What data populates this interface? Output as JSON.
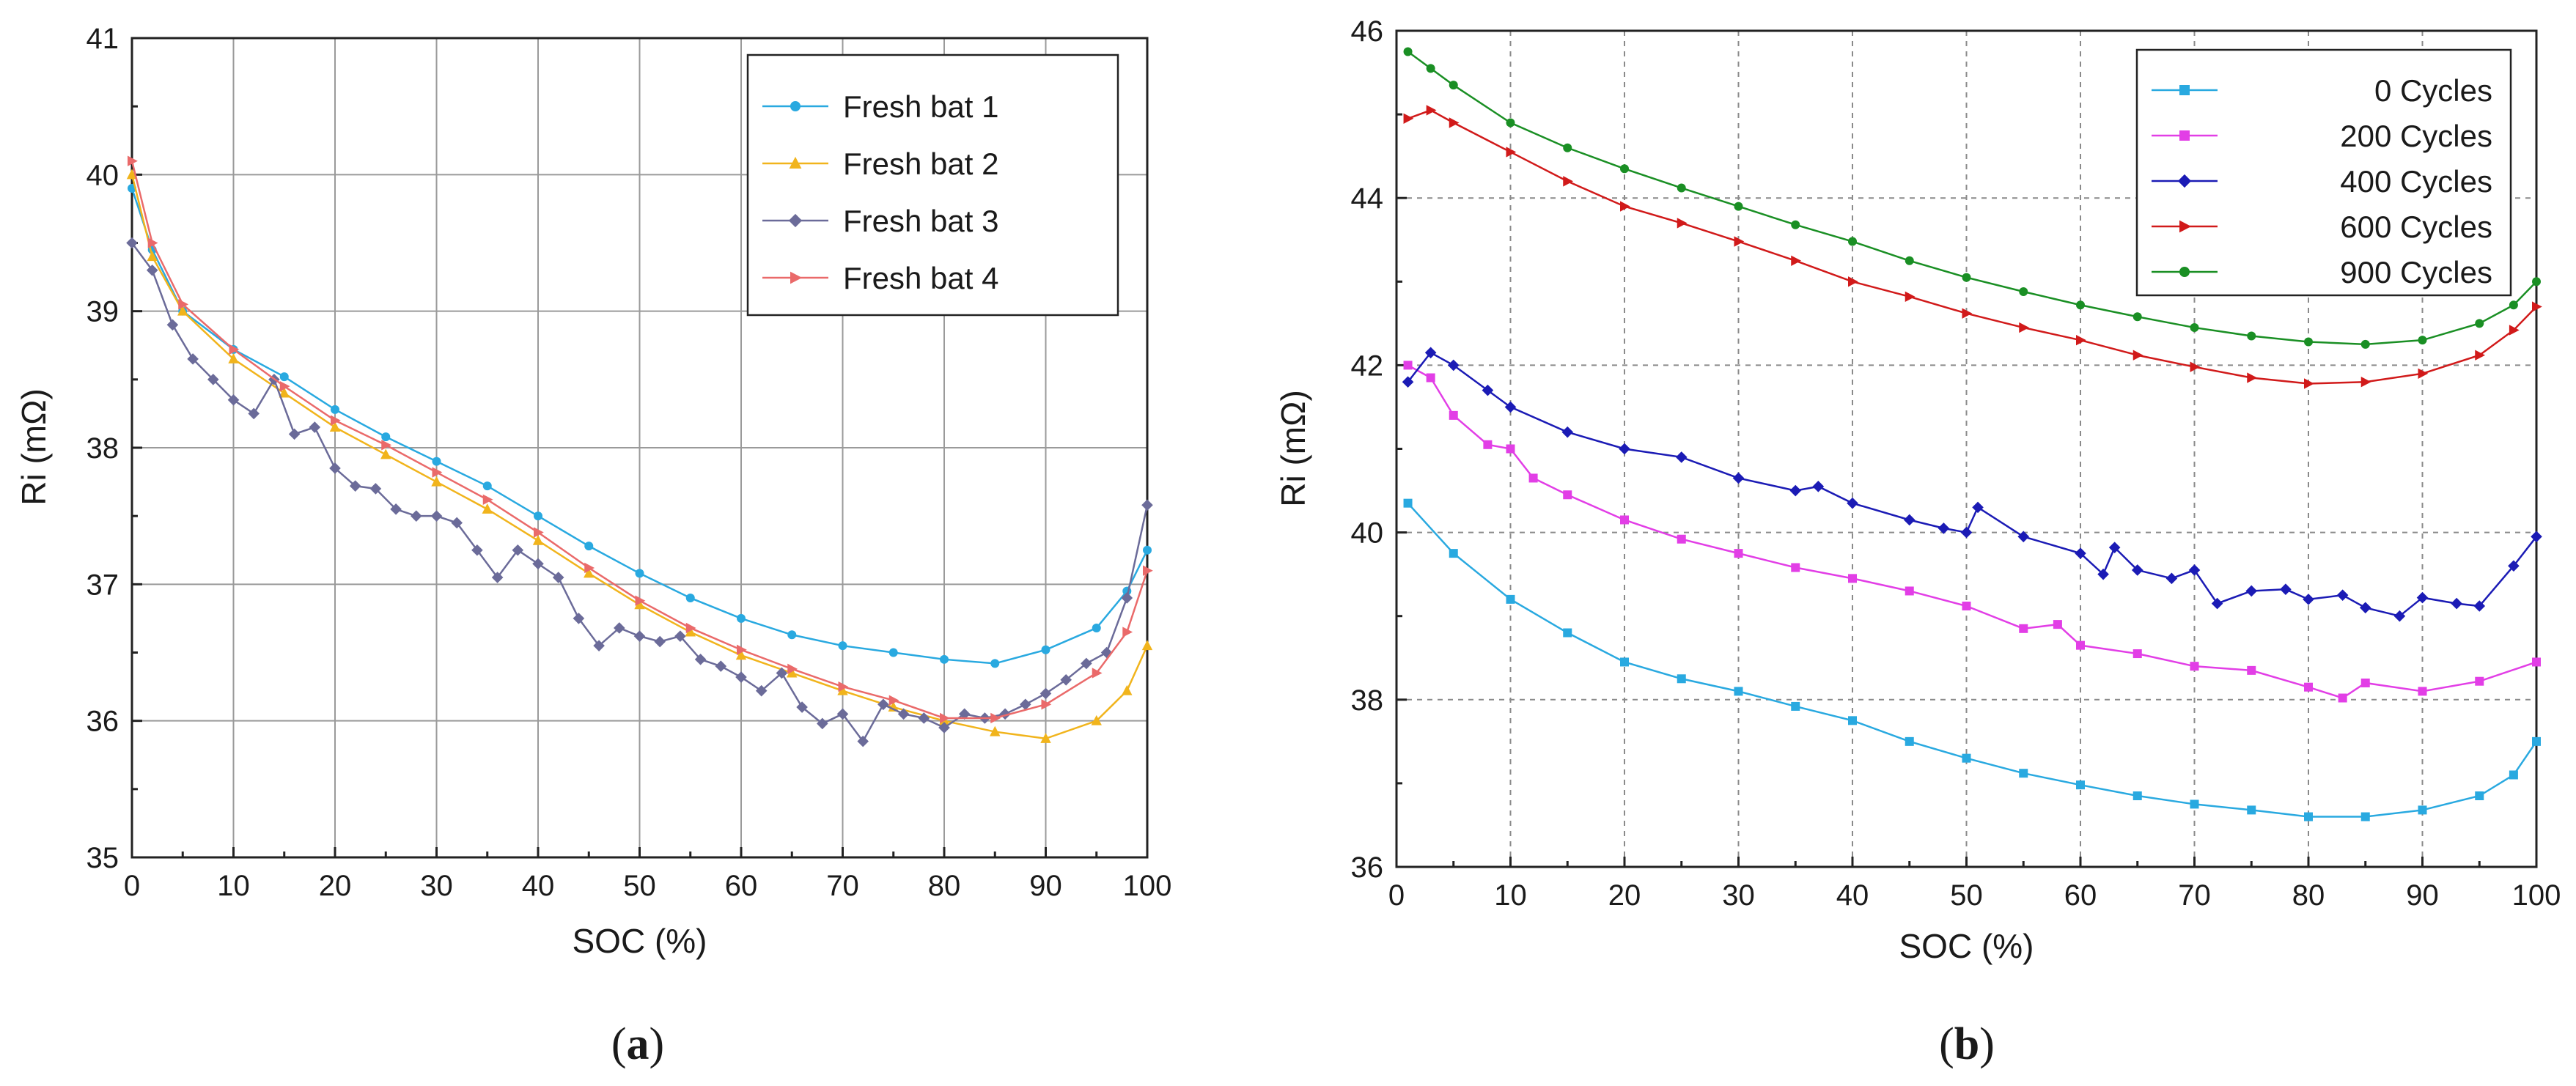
{
  "chart_data": [
    {
      "type": "line",
      "panel_label": "a",
      "xlabel": "SOC (%)",
      "ylabel": "Ri (mΩ)",
      "xlim": [
        0,
        100
      ],
      "ylim": [
        35,
        41
      ],
      "xticks": [
        0,
        10,
        20,
        30,
        40,
        50,
        60,
        70,
        80,
        90,
        100
      ],
      "yticks": [
        35,
        36,
        37,
        38,
        39,
        40,
        41
      ],
      "grid": "solid",
      "legend_position": "top-right",
      "series": [
        {
          "name": "Fresh bat 1",
          "color": "#29a9e0",
          "marker": "circle",
          "x": [
            0,
            2,
            5,
            10,
            15,
            20,
            25,
            30,
            35,
            40,
            45,
            50,
            55,
            60,
            65,
            70,
            75,
            80,
            85,
            90,
            95,
            98,
            100
          ],
          "y": [
            39.9,
            39.45,
            39.0,
            38.72,
            38.52,
            38.28,
            38.08,
            37.9,
            37.72,
            37.5,
            37.28,
            37.08,
            36.9,
            36.75,
            36.63,
            36.55,
            36.5,
            36.45,
            36.42,
            36.52,
            36.68,
            36.95,
            37.25
          ]
        },
        {
          "name": "Fresh bat 2",
          "color": "#f1b41c",
          "marker": "triangle-up",
          "x": [
            0,
            2,
            5,
            10,
            15,
            20,
            25,
            30,
            35,
            40,
            45,
            50,
            55,
            60,
            65,
            70,
            75,
            80,
            85,
            90,
            95,
            98,
            100
          ],
          "y": [
            40.0,
            39.4,
            39.0,
            38.65,
            38.4,
            38.15,
            37.95,
            37.75,
            37.55,
            37.32,
            37.08,
            36.85,
            36.65,
            36.48,
            36.35,
            36.22,
            36.1,
            36.0,
            35.92,
            35.87,
            36.0,
            36.22,
            36.55
          ]
        },
        {
          "name": "Fresh bat 3",
          "color": "#6b6b99",
          "marker": "diamond",
          "x": [
            0,
            2,
            4,
            6,
            8,
            10,
            12,
            14,
            16,
            18,
            20,
            22,
            24,
            26,
            28,
            30,
            32,
            34,
            36,
            38,
            40,
            42,
            44,
            46,
            48,
            50,
            52,
            54,
            56,
            58,
            60,
            62,
            64,
            66,
            68,
            70,
            72,
            74,
            76,
            78,
            80,
            82,
            84,
            86,
            88,
            90,
            92,
            94,
            96,
            98,
            100
          ],
          "y": [
            39.5,
            39.3,
            38.9,
            38.65,
            38.5,
            38.35,
            38.25,
            38.5,
            38.1,
            38.15,
            37.85,
            37.72,
            37.7,
            37.55,
            37.5,
            37.5,
            37.45,
            37.25,
            37.05,
            37.25,
            37.15,
            37.05,
            36.75,
            36.55,
            36.68,
            36.62,
            36.58,
            36.62,
            36.45,
            36.4,
            36.32,
            36.22,
            36.35,
            36.1,
            35.98,
            36.05,
            35.85,
            36.12,
            36.05,
            36.02,
            35.95,
            36.05,
            36.02,
            36.05,
            36.12,
            36.2,
            36.3,
            36.42,
            36.5,
            36.9,
            37.58
          ]
        },
        {
          "name": "Fresh bat 4",
          "color": "#ea6a6a",
          "marker": "triangle-right",
          "x": [
            0,
            2,
            5,
            10,
            15,
            20,
            25,
            30,
            35,
            40,
            45,
            50,
            55,
            60,
            65,
            70,
            75,
            80,
            85,
            90,
            95,
            98,
            100
          ],
          "y": [
            40.1,
            39.5,
            39.05,
            38.72,
            38.45,
            38.2,
            38.02,
            37.82,
            37.62,
            37.38,
            37.12,
            36.88,
            36.68,
            36.52,
            36.38,
            36.25,
            36.15,
            36.02,
            36.02,
            36.12,
            36.35,
            36.65,
            37.1
          ]
        }
      ]
    },
    {
      "type": "line",
      "panel_label": "b",
      "xlabel": "SOC (%)",
      "ylabel": "Ri (mΩ)",
      "xlim": [
        0,
        100
      ],
      "ylim": [
        36,
        46
      ],
      "xticks": [
        0,
        10,
        20,
        30,
        40,
        50,
        60,
        70,
        80,
        90,
        100
      ],
      "yticks": [
        36,
        38,
        40,
        42,
        44,
        46
      ],
      "grid": "dashed",
      "legend_position": "top-right",
      "series": [
        {
          "name": "0 Cycles",
          "color": "#29a9e0",
          "marker": "square",
          "x": [
            1,
            5,
            10,
            15,
            20,
            25,
            30,
            35,
            40,
            45,
            50,
            55,
            60,
            65,
            70,
            75,
            80,
            85,
            90,
            95,
            98,
            100
          ],
          "y": [
            40.35,
            39.75,
            39.2,
            38.8,
            38.45,
            38.25,
            38.1,
            37.92,
            37.75,
            37.5,
            37.3,
            37.12,
            36.98,
            36.85,
            36.75,
            36.68,
            36.6,
            36.6,
            36.68,
            36.85,
            37.1,
            37.5
          ]
        },
        {
          "name": "200 Cycles",
          "color": "#e23ee6",
          "marker": "square",
          "x": [
            1,
            3,
            5,
            8,
            10,
            12,
            15,
            20,
            25,
            30,
            35,
            40,
            45,
            50,
            55,
            58,
            60,
            65,
            70,
            75,
            80,
            83,
            85,
            90,
            95,
            100
          ],
          "y": [
            42.0,
            41.85,
            41.4,
            41.05,
            41.0,
            40.65,
            40.45,
            40.15,
            39.92,
            39.75,
            39.58,
            39.45,
            39.3,
            39.12,
            38.85,
            38.9,
            38.65,
            38.55,
            38.4,
            38.35,
            38.15,
            38.02,
            38.2,
            38.1,
            38.22,
            38.45
          ]
        },
        {
          "name": "400 Cycles",
          "color": "#1b1bb5",
          "marker": "diamond",
          "x": [
            1,
            3,
            5,
            8,
            10,
            15,
            20,
            25,
            30,
            35,
            37,
            40,
            45,
            48,
            50,
            51,
            55,
            60,
            62,
            63,
            65,
            68,
            70,
            72,
            75,
            78,
            80,
            83,
            85,
            88,
            90,
            93,
            95,
            98,
            100
          ],
          "y": [
            41.8,
            42.15,
            42.0,
            41.7,
            41.5,
            41.2,
            41.0,
            40.9,
            40.65,
            40.5,
            40.55,
            40.35,
            40.15,
            40.05,
            40.0,
            40.3,
            39.95,
            39.75,
            39.5,
            39.82,
            39.55,
            39.45,
            39.55,
            39.15,
            39.3,
            39.32,
            39.2,
            39.25,
            39.1,
            39.0,
            39.22,
            39.15,
            39.12,
            39.6,
            39.95
          ]
        },
        {
          "name": "600 Cycles",
          "color": "#d11a1a",
          "marker": "triangle-right",
          "x": [
            1,
            3,
            5,
            10,
            15,
            20,
            25,
            30,
            35,
            40,
            45,
            50,
            55,
            60,
            65,
            70,
            75,
            80,
            85,
            90,
            95,
            98,
            100
          ],
          "y": [
            44.95,
            45.05,
            44.9,
            44.55,
            44.2,
            43.9,
            43.7,
            43.48,
            43.25,
            43.0,
            42.82,
            42.62,
            42.45,
            42.3,
            42.12,
            41.98,
            41.85,
            41.78,
            41.8,
            41.9,
            42.12,
            42.42,
            42.7
          ]
        },
        {
          "name": "900 Cycles",
          "color": "#1a8f24",
          "marker": "circle",
          "x": [
            1,
            3,
            5,
            10,
            15,
            20,
            25,
            30,
            35,
            40,
            45,
            50,
            55,
            60,
            65,
            70,
            75,
            80,
            85,
            90,
            95,
            98,
            100
          ],
          "y": [
            45.75,
            45.55,
            45.35,
            44.9,
            44.6,
            44.35,
            44.12,
            43.9,
            43.68,
            43.48,
            43.25,
            43.05,
            42.88,
            42.72,
            42.58,
            42.45,
            42.35,
            42.28,
            42.25,
            42.3,
            42.5,
            42.72,
            43.0
          ]
        }
      ]
    }
  ]
}
